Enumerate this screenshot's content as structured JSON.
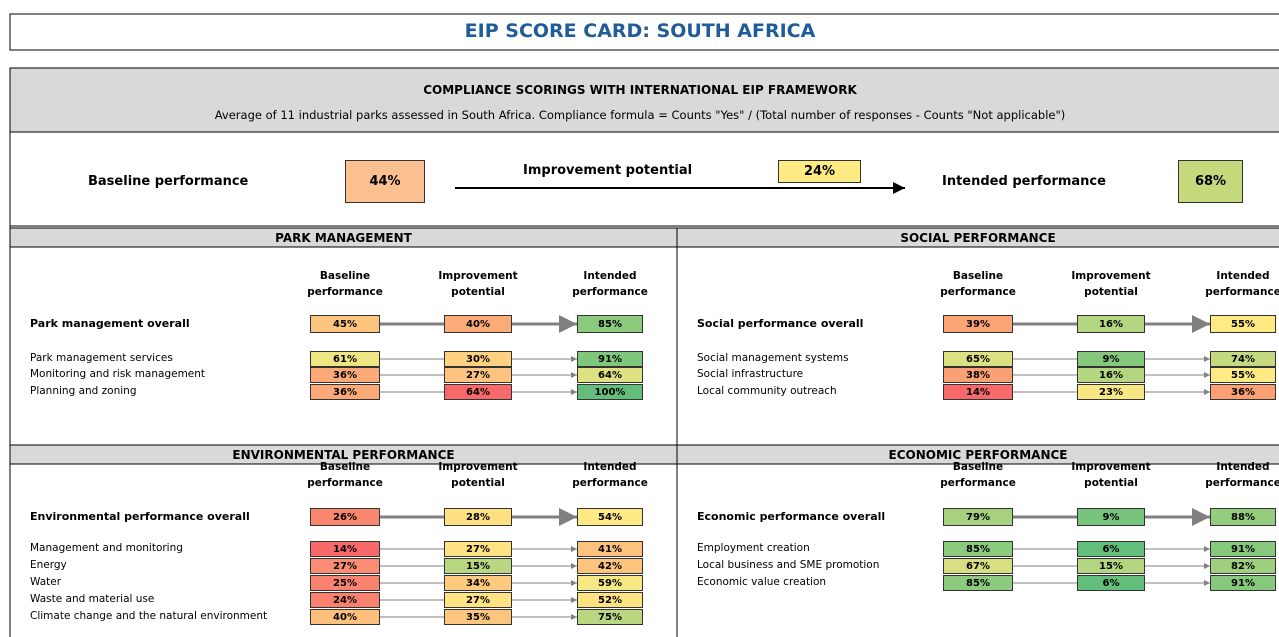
{
  "header": {
    "title": "EIP SCORE CARD: SOUTH AFRICA"
  },
  "framework": {
    "title": "COMPLIANCE SCORINGS WITH INTERNATIONAL EIP FRAMEWORK",
    "subtitle": "Average of 11 industrial parks assessed in South Africa. Compliance formula = Counts \"Yes\" / (Total number of responses - Counts \"Not applicable\")"
  },
  "summary": {
    "baseline": {
      "label": "Baseline performance",
      "value": "44%",
      "color": "#fac090"
    },
    "improvement": {
      "label": "Improvement potential",
      "value": "24%",
      "color": "#ffeb84"
    },
    "intended": {
      "label": "Intended performance",
      "value": "68%",
      "color": "#c4d97c"
    }
  },
  "sections": [
    {
      "title": "PARK MANAGEMENT",
      "columns": [
        "Baseline performance",
        "Improvement potential",
        "Intended performance"
      ],
      "rows": [
        {
          "label": "Park management overall",
          "values": [
            "45%",
            "40%",
            "85%"
          ],
          "colors": [
            "#fdc47d",
            "#fbab77",
            "#8ccb7e"
          ]
        },
        {
          "label": "Park management services",
          "values": [
            "61%",
            "30%",
            "91%"
          ],
          "colors": [
            "#eee683",
            "#fed280",
            "#7fc77c"
          ]
        },
        {
          "label": "Monitoring and risk management",
          "values": [
            "36%",
            "27%",
            "64%"
          ],
          "colors": [
            "#fbaa77",
            "#fec47f",
            "#dfe283"
          ]
        },
        {
          "label": "Planning and zoning",
          "values": [
            "36%",
            "64%",
            "100%"
          ],
          "colors": [
            "#fbaa77",
            "#f8696b",
            "#63be7b"
          ]
        }
      ]
    },
    {
      "title": "SOCIAL PERFORMANCE",
      "columns": [
        "Baseline performance",
        "Improvement potential",
        "Intended performance"
      ],
      "rows": [
        {
          "label": "Social performance overall",
          "values": [
            "39%",
            "16%",
            "55%"
          ],
          "colors": [
            "#fba576",
            "#b5d680",
            "#ffeb84"
          ]
        },
        {
          "label": "Social management systems",
          "values": [
            "65%",
            "9%",
            "74%"
          ],
          "colors": [
            "#dbe182",
            "#85c87d",
            "#c4da80"
          ]
        },
        {
          "label": "Social infrastructure",
          "values": [
            "38%",
            "16%",
            "55%"
          ],
          "colors": [
            "#f9a074",
            "#b5d680",
            "#ffeb84"
          ]
        },
        {
          "label": "Local community outreach",
          "values": [
            "14%",
            "23%",
            "36%"
          ],
          "colors": [
            "#f8696b",
            "#f7e884",
            "#fba074"
          ]
        }
      ]
    },
    {
      "title": "ENVIRONMENTAL PERFORMANCE",
      "columns": [
        "Baseline performance",
        "Improvement potential",
        "Intended performance"
      ],
      "rows": [
        {
          "label": "Environmental performance overall",
          "values": [
            "26%",
            "28%",
            "54%"
          ],
          "colors": [
            "#f98770",
            "#fee083",
            "#ffe984"
          ]
        },
        {
          "label": "Management and monitoring",
          "values": [
            "14%",
            "27%",
            "41%"
          ],
          "colors": [
            "#f8696b",
            "#fee283",
            "#fdc27d"
          ]
        },
        {
          "label": "Energy",
          "values": [
            "27%",
            "15%",
            "42%"
          ],
          "colors": [
            "#f98c72",
            "#b8d780",
            "#fdc47d"
          ]
        },
        {
          "label": "Water",
          "values": [
            "25%",
            "34%",
            "59%"
          ],
          "colors": [
            "#f9836f",
            "#fdca7e",
            "#f6e883"
          ]
        },
        {
          "label": "Waste and material use",
          "values": [
            "24%",
            "27%",
            "52%"
          ],
          "colors": [
            "#f97f6f",
            "#fee283",
            "#ffe383"
          ]
        },
        {
          "label": "Climate change and the natural environment",
          "values": [
            "40%",
            "35%",
            "75%"
          ],
          "colors": [
            "#fdbf7c",
            "#fcc67e",
            "#b8d780"
          ]
        }
      ]
    },
    {
      "title": "ECONOMIC PERFORMANCE",
      "columns": [
        "Baseline performance",
        "Improvement potential",
        "Intended performance"
      ],
      "rows": [
        {
          "label": "Economic performance overall",
          "values": [
            "79%",
            "9%",
            "88%"
          ],
          "colors": [
            "#a6d27f",
            "#77c47c",
            "#95cd7e"
          ]
        },
        {
          "label": "Employment creation",
          "values": [
            "85%",
            "6%",
            "91%"
          ],
          "colors": [
            "#8ccb7e",
            "#63be7b",
            "#86c97d"
          ]
        },
        {
          "label": "Local business and SME promotion",
          "values": [
            "67%",
            "15%",
            "82%"
          ],
          "colors": [
            "#d7df82",
            "#b5d680",
            "#a0d07f"
          ]
        },
        {
          "label": "Economic value creation",
          "values": [
            "85%",
            "6%",
            "91%"
          ],
          "colors": [
            "#8ccb7e",
            "#63be7b",
            "#86c97d"
          ]
        }
      ]
    }
  ]
}
